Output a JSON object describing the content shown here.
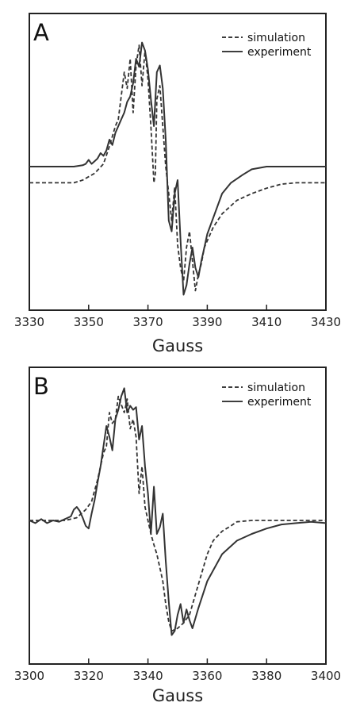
{
  "chart_data": [
    {
      "type": "line",
      "panel_label": "A",
      "xlabel": "Gauss",
      "ylabel": "",
      "xlim": [
        3330,
        3430
      ],
      "ylim": [
        -1.0,
        1.0
      ],
      "xticks": [
        3330,
        3350,
        3370,
        3390,
        3410,
        3430
      ],
      "grid": false,
      "legend_position": "top-right",
      "series": [
        {
          "name": "simulation",
          "style": "dashed",
          "x": [
            3330,
            3345,
            3348,
            3352,
            3355,
            3357,
            3359,
            3360,
            3362,
            3363,
            3364,
            3365,
            3366,
            3367,
            3368,
            3369,
            3370,
            3371,
            3372,
            3372.5,
            3373,
            3374,
            3375,
            3376,
            3377,
            3378,
            3379,
            3380,
            3381,
            3382,
            3383,
            3384,
            3385,
            3386,
            3387,
            3388,
            3389,
            3390,
            3392,
            3395,
            3400,
            3405,
            3410,
            3415,
            3420,
            3430
          ],
          "y": [
            -0.12,
            -0.12,
            -0.1,
            -0.05,
            0.02,
            0.15,
            0.3,
            0.35,
            0.7,
            0.58,
            0.8,
            0.4,
            0.75,
            0.9,
            0.6,
            0.86,
            0.65,
            0.3,
            -0.12,
            -0.05,
            0.5,
            0.6,
            0.3,
            0.0,
            -0.2,
            -0.4,
            -0.15,
            -0.58,
            -0.75,
            -0.85,
            -0.6,
            -0.48,
            -0.7,
            -0.92,
            -0.8,
            -0.72,
            -0.6,
            -0.55,
            -0.45,
            -0.35,
            -0.25,
            -0.2,
            -0.16,
            -0.13,
            -0.12,
            -0.12
          ]
        },
        {
          "name": "experiment",
          "style": "solid",
          "x": [
            3330,
            3345,
            3348,
            3349,
            3350,
            3351,
            3352,
            3353,
            3354,
            3355,
            3356,
            3357,
            3358,
            3359,
            3360,
            3361,
            3362,
            3363,
            3364,
            3365,
            3366,
            3367,
            3368,
            3369,
            3370,
            3371,
            3372,
            3373,
            3374,
            3375,
            3376,
            3377,
            3378,
            3379,
            3380,
            3381,
            3382,
            3383,
            3384,
            3385,
            3386,
            3387,
            3388,
            3389,
            3390,
            3392,
            3395,
            3398,
            3400,
            3402,
            3405,
            3410,
            3420,
            3430
          ],
          "y": [
            0.0,
            0.0,
            0.01,
            0.02,
            0.05,
            0.02,
            0.04,
            0.06,
            0.1,
            0.08,
            0.12,
            0.2,
            0.16,
            0.25,
            0.3,
            0.35,
            0.4,
            0.48,
            0.52,
            0.62,
            0.8,
            0.74,
            0.92,
            0.86,
            0.72,
            0.5,
            0.3,
            0.7,
            0.75,
            0.58,
            0.2,
            -0.4,
            -0.48,
            -0.2,
            -0.1,
            -0.55,
            -0.95,
            -0.88,
            -0.72,
            -0.6,
            -0.75,
            -0.82,
            -0.7,
            -0.6,
            -0.5,
            -0.38,
            -0.2,
            -0.12,
            -0.09,
            -0.06,
            -0.02,
            0.0,
            0.0,
            0.0
          ]
        }
      ]
    },
    {
      "type": "line",
      "panel_label": "B",
      "xlabel": "Gauss",
      "ylabel": "",
      "xlim": [
        3300,
        3400
      ],
      "ylim": [
        -1.0,
        1.0
      ],
      "xticks": [
        3300,
        3320,
        3340,
        3360,
        3380,
        3400
      ],
      "grid": false,
      "legend_position": "top-right",
      "series": [
        {
          "name": "simulation",
          "style": "dashed",
          "x": [
            3300,
            3312,
            3316,
            3319,
            3321,
            3323,
            3325,
            3326,
            3327,
            3328,
            3329,
            3330,
            3331,
            3332,
            3333,
            3334,
            3335,
            3336,
            3337,
            3338,
            3339,
            3340,
            3341,
            3342,
            3343,
            3344,
            3345,
            3346,
            3347,
            3348,
            3350,
            3352,
            3354,
            3356,
            3358,
            3360,
            3362,
            3365,
            3368,
            3370,
            3375,
            3380,
            3390,
            3400
          ],
          "y": [
            0.0,
            0.0,
            0.02,
            0.08,
            0.14,
            0.3,
            0.5,
            0.55,
            0.8,
            0.72,
            0.75,
            0.92,
            0.86,
            0.8,
            0.9,
            0.68,
            0.75,
            0.62,
            0.2,
            0.4,
            0.1,
            0.0,
            -0.1,
            -0.18,
            -0.25,
            -0.35,
            -0.45,
            -0.62,
            -0.75,
            -0.82,
            -0.8,
            -0.76,
            -0.7,
            -0.55,
            -0.4,
            -0.25,
            -0.15,
            -0.08,
            -0.04,
            -0.01,
            0.0,
            0.0,
            0.0,
            0.0
          ]
        },
        {
          "name": "experiment",
          "style": "solid",
          "x": [
            3300,
            3302,
            3304,
            3306,
            3308,
            3310,
            3312,
            3314,
            3315,
            3316,
            3317,
            3318,
            3319,
            3320,
            3321,
            3322,
            3323,
            3324,
            3325,
            3326,
            3327,
            3328,
            3329,
            3330,
            3331,
            3332,
            3333,
            3334,
            3335,
            3336,
            3337,
            3338,
            3339,
            3340,
            3341,
            3342,
            3343,
            3344,
            3345,
            3346,
            3347,
            3348,
            3349,
            3350,
            3351,
            3352,
            3353,
            3354,
            3355,
            3357,
            3360,
            3365,
            3370,
            3375,
            3380,
            3385,
            3390,
            3395,
            3400
          ],
          "y": [
            0.0,
            -0.02,
            0.01,
            -0.02,
            0.0,
            -0.01,
            0.01,
            0.03,
            0.08,
            0.1,
            0.07,
            0.02,
            -0.04,
            -0.06,
            0.05,
            0.15,
            0.28,
            0.4,
            0.55,
            0.7,
            0.62,
            0.52,
            0.75,
            0.82,
            0.92,
            0.98,
            0.8,
            0.85,
            0.82,
            0.84,
            0.6,
            0.7,
            0.4,
            0.2,
            -0.1,
            0.25,
            -0.1,
            -0.05,
            0.05,
            -0.3,
            -0.6,
            -0.85,
            -0.82,
            -0.7,
            -0.62,
            -0.76,
            -0.66,
            -0.74,
            -0.8,
            -0.65,
            -0.45,
            -0.25,
            -0.15,
            -0.1,
            -0.06,
            -0.03,
            -0.02,
            -0.01,
            -0.02
          ]
        }
      ]
    }
  ]
}
